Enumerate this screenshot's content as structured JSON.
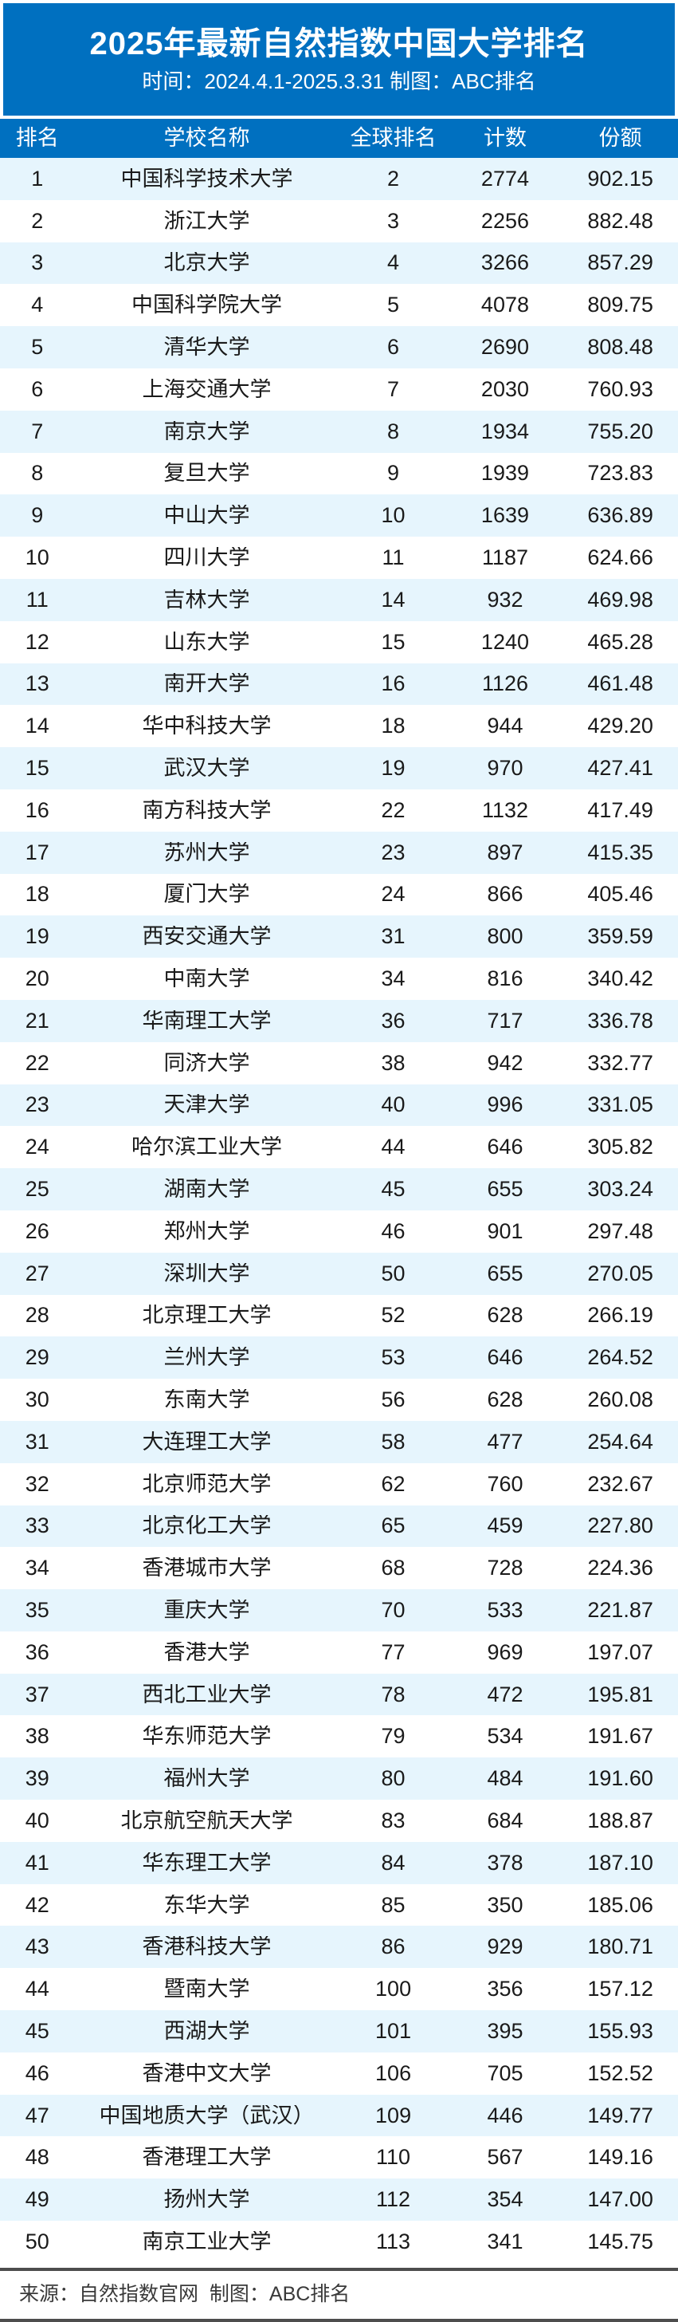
{
  "banner": {
    "title": "2025年最新自然指数中国大学排名",
    "subtitle": "时间：2024.4.1-2025.3.31 制图：ABC排名"
  },
  "chart_data": {
    "type": "table",
    "title": "2025年最新自然指数中国大学排名",
    "subtitle": "时间：2024.4.1-2025.3.31 制图：ABC排名",
    "columns": [
      "排名",
      "学校名称",
      "全球排名",
      "计数",
      "份额"
    ],
    "rows": [
      [
        1,
        "中国科学技术大学",
        2,
        2774,
        "902.15"
      ],
      [
        2,
        "浙江大学",
        3,
        2256,
        "882.48"
      ],
      [
        3,
        "北京大学",
        4,
        3266,
        "857.29"
      ],
      [
        4,
        "中国科学院大学",
        5,
        4078,
        "809.75"
      ],
      [
        5,
        "清华大学",
        6,
        2690,
        "808.48"
      ],
      [
        6,
        "上海交通大学",
        7,
        2030,
        "760.93"
      ],
      [
        7,
        "南京大学",
        8,
        1934,
        "755.20"
      ],
      [
        8,
        "复旦大学",
        9,
        1939,
        "723.83"
      ],
      [
        9,
        "中山大学",
        10,
        1639,
        "636.89"
      ],
      [
        10,
        "四川大学",
        11,
        1187,
        "624.66"
      ],
      [
        11,
        "吉林大学",
        14,
        932,
        "469.98"
      ],
      [
        12,
        "山东大学",
        15,
        1240,
        "465.28"
      ],
      [
        13,
        "南开大学",
        16,
        1126,
        "461.48"
      ],
      [
        14,
        "华中科技大学",
        18,
        944,
        "429.20"
      ],
      [
        15,
        "武汉大学",
        19,
        970,
        "427.41"
      ],
      [
        16,
        "南方科技大学",
        22,
        1132,
        "417.49"
      ],
      [
        17,
        "苏州大学",
        23,
        897,
        "415.35"
      ],
      [
        18,
        "厦门大学",
        24,
        866,
        "405.46"
      ],
      [
        19,
        "西安交通大学",
        31,
        800,
        "359.59"
      ],
      [
        20,
        "中南大学",
        34,
        816,
        "340.42"
      ],
      [
        21,
        "华南理工大学",
        36,
        717,
        "336.78"
      ],
      [
        22,
        "同济大学",
        38,
        942,
        "332.77"
      ],
      [
        23,
        "天津大学",
        40,
        996,
        "331.05"
      ],
      [
        24,
        "哈尔滨工业大学",
        44,
        646,
        "305.82"
      ],
      [
        25,
        "湖南大学",
        45,
        655,
        "303.24"
      ],
      [
        26,
        "郑州大学",
        46,
        901,
        "297.48"
      ],
      [
        27,
        "深圳大学",
        50,
        655,
        "270.05"
      ],
      [
        28,
        "北京理工大学",
        52,
        628,
        "266.19"
      ],
      [
        29,
        "兰州大学",
        53,
        646,
        "264.52"
      ],
      [
        30,
        "东南大学",
        56,
        628,
        "260.08"
      ],
      [
        31,
        "大连理工大学",
        58,
        477,
        "254.64"
      ],
      [
        32,
        "北京师范大学",
        62,
        760,
        "232.67"
      ],
      [
        33,
        "北京化工大学",
        65,
        459,
        "227.80"
      ],
      [
        34,
        "香港城市大学",
        68,
        728,
        "224.36"
      ],
      [
        35,
        "重庆大学",
        70,
        533,
        "221.87"
      ],
      [
        36,
        "香港大学",
        77,
        969,
        "197.07"
      ],
      [
        37,
        "西北工业大学",
        78,
        472,
        "195.81"
      ],
      [
        38,
        "华东师范大学",
        79,
        534,
        "191.67"
      ],
      [
        39,
        "福州大学",
        80,
        484,
        "191.60"
      ],
      [
        40,
        "北京航空航天大学",
        83,
        684,
        "188.87"
      ],
      [
        41,
        "华东理工大学",
        84,
        378,
        "187.10"
      ],
      [
        42,
        "东华大学",
        85,
        350,
        "185.06"
      ],
      [
        43,
        "香港科技大学",
        86,
        929,
        "180.71"
      ],
      [
        44,
        "暨南大学",
        100,
        356,
        "157.12"
      ],
      [
        45,
        "西湖大学",
        101,
        395,
        "155.93"
      ],
      [
        46,
        "香港中文大学",
        106,
        705,
        "152.52"
      ],
      [
        47,
        "中国地质大学（武汉）",
        109,
        446,
        "149.77"
      ],
      [
        48,
        "香港理工大学",
        110,
        567,
        "149.16"
      ],
      [
        49,
        "扬州大学",
        112,
        354,
        "147.00"
      ],
      [
        50,
        "南京工业大学",
        113,
        341,
        "145.75"
      ]
    ]
  },
  "footer": {
    "source_label": "来源：自然指数官网  制图：ABC排名"
  },
  "colors": {
    "primary_blue": "#0070c0",
    "row_alt_blue": "#e6f5fd",
    "row_white": "#ffffff",
    "text": "#1a1a1a",
    "footer_line": "#4d4d4d"
  }
}
